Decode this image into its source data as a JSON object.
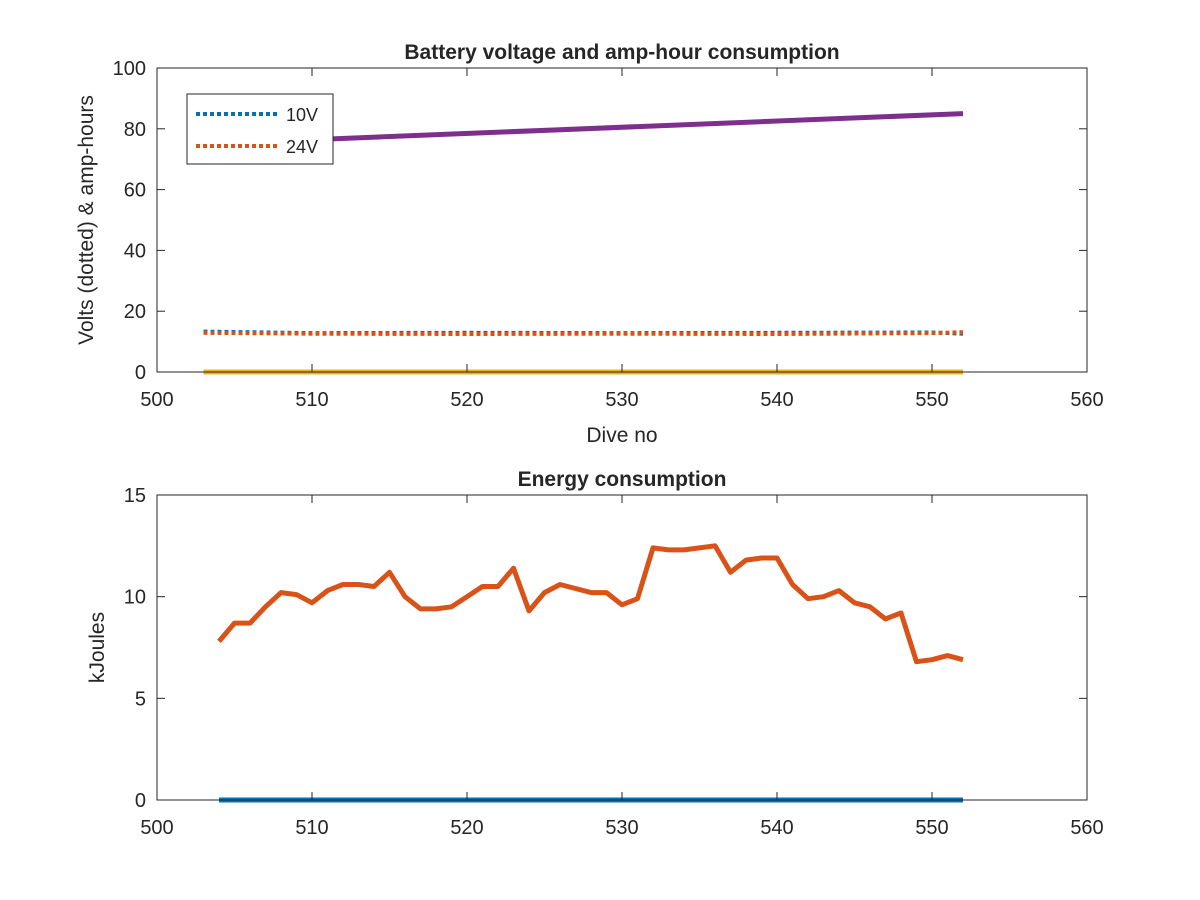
{
  "chart_data": [
    {
      "type": "line",
      "title": "Battery voltage and amp-hour consumption",
      "xlabel": "Dive no",
      "ylabel": "Volts (dotted) & amp-hours",
      "xlim": [
        500,
        560
      ],
      "ylim": [
        0,
        100
      ],
      "xticks": [
        500,
        510,
        520,
        530,
        540,
        550,
        560
      ],
      "yticks": [
        0,
        20,
        40,
        60,
        80,
        100
      ],
      "grid": false,
      "legend_position": "top-left",
      "series": [
        {
          "name": "10V",
          "style": "dotted",
          "color": "#0072BD",
          "x": [
            503,
            510,
            520,
            530,
            540,
            550,
            552
          ],
          "y": [
            13.3,
            12.8,
            12.9,
            12.8,
            12.9,
            13.0,
            12.6
          ]
        },
        {
          "name": "24V",
          "style": "dotted",
          "color": "#D95319",
          "x": [
            503,
            510,
            520,
            530,
            540,
            550,
            552
          ],
          "y": [
            12.9,
            12.6,
            12.5,
            12.6,
            12.5,
            12.8,
            13.1
          ]
        },
        {
          "style": "solid",
          "color": "#EDB120",
          "x": [
            503,
            552
          ],
          "y": [
            0,
            0
          ]
        },
        {
          "style": "solid",
          "color": "#7E2F8E",
          "x": [
            503,
            552
          ],
          "y": [
            75,
            85
          ]
        }
      ]
    },
    {
      "type": "line",
      "title": "Energy consumption",
      "xlabel": "",
      "ylabel": "kJoules",
      "xlim": [
        500,
        560
      ],
      "ylim": [
        0,
        15
      ],
      "xticks": [
        500,
        510,
        520,
        530,
        540,
        550,
        560
      ],
      "yticks": [
        0,
        5,
        10,
        15
      ],
      "grid": false,
      "series": [
        {
          "style": "solid",
          "color": "#0072BD",
          "x": [
            504,
            552
          ],
          "y": [
            0,
            0
          ]
        },
        {
          "style": "solid",
          "color": "#D95319",
          "x": [
            504,
            505,
            506,
            507,
            508,
            509,
            510,
            511,
            512,
            513,
            514,
            515,
            516,
            517,
            518,
            519,
            520,
            521,
            522,
            523,
            524,
            525,
            526,
            527,
            528,
            529,
            530,
            531,
            532,
            533,
            534,
            535,
            536,
            537,
            538,
            539,
            540,
            541,
            542,
            543,
            544,
            545,
            546,
            547,
            548,
            549,
            550,
            551,
            552
          ],
          "y": [
            7.8,
            8.7,
            8.7,
            9.5,
            10.2,
            10.1,
            9.7,
            10.3,
            10.6,
            10.6,
            10.5,
            11.2,
            10.0,
            9.4,
            9.4,
            9.5,
            10.0,
            10.5,
            10.5,
            11.4,
            9.3,
            10.2,
            10.6,
            10.4,
            10.2,
            10.2,
            9.6,
            9.9,
            12.4,
            12.3,
            12.3,
            12.4,
            12.5,
            11.2,
            11.8,
            11.9,
            11.9,
            10.6,
            9.9,
            10.0,
            10.3,
            9.7,
            9.5,
            8.9,
            9.2,
            6.8,
            6.9,
            7.1,
            6.9
          ]
        }
      ]
    }
  ]
}
